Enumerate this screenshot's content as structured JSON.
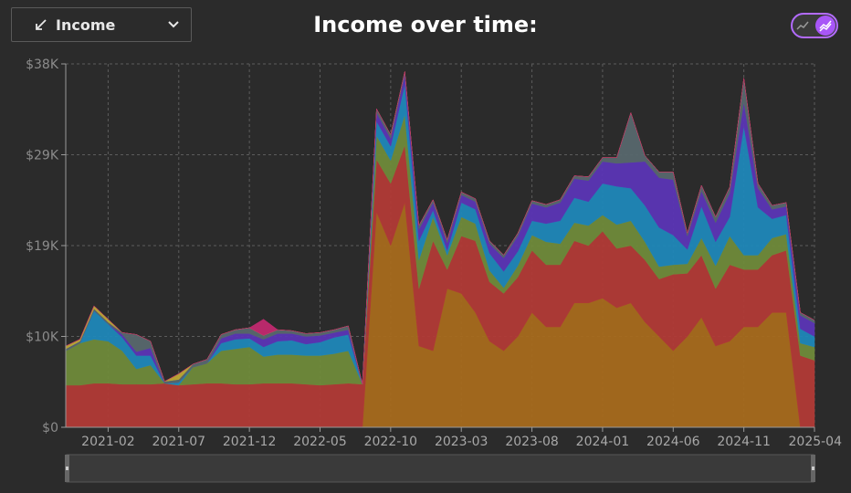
{
  "header": {
    "dropdown_label": "Income",
    "dropdown_icon": "trend-down-icon",
    "title": "Income over time:",
    "toggle_state": "on",
    "accent": "#a856f7"
  },
  "chart_data": {
    "type": "area",
    "stacked": true,
    "title": "Income over time:",
    "xlabel": "",
    "ylabel": "",
    "ylim": [
      0,
      38000
    ],
    "yticks": [
      0,
      9500,
      19000,
      28500,
      38000
    ],
    "ytick_labels": [
      "$0",
      "$10K",
      "$19K",
      "$29K",
      "$38K"
    ],
    "xticks": [
      "2021-02",
      "2021-07",
      "2021-12",
      "2022-05",
      "2022-10",
      "2023-03",
      "2023-08",
      "2024-01",
      "2024-06",
      "2024-11",
      "2025-04"
    ],
    "grid": true,
    "legend": "none",
    "x": [
      "2020-11",
      "2020-12",
      "2021-01",
      "2021-02",
      "2021-03",
      "2021-04",
      "2021-05",
      "2021-06",
      "2021-07",
      "2021-08",
      "2021-09",
      "2021-10",
      "2021-11",
      "2021-12",
      "2022-01",
      "2022-02",
      "2022-03",
      "2022-04",
      "2022-05",
      "2022-06",
      "2022-07",
      "2022-08",
      "2022-09",
      "2022-10",
      "2022-11",
      "2022-12",
      "2023-01",
      "2023-02",
      "2023-03",
      "2023-04",
      "2023-05",
      "2023-06",
      "2023-07",
      "2023-08",
      "2023-09",
      "2023-10",
      "2023-11",
      "2023-12",
      "2024-01",
      "2024-02",
      "2024-03",
      "2024-04",
      "2024-05",
      "2024-06",
      "2024-07",
      "2024-08",
      "2024-09",
      "2024-10",
      "2024-11",
      "2024-12",
      "2025-01",
      "2025-02",
      "2025-03",
      "2025-04"
    ],
    "series": [
      {
        "color": "#a66a1c",
        "values": [
          0,
          0,
          0,
          0,
          0,
          0,
          0,
          0,
          0,
          0,
          0,
          0,
          0,
          0,
          0,
          0,
          0,
          0,
          0,
          0,
          0,
          0,
          22500,
          19000,
          23500,
          8500,
          8000,
          14500,
          14000,
          12000,
          9000,
          8000,
          9500,
          12000,
          10500,
          10500,
          13000,
          13000,
          13500,
          12500,
          13000,
          11000,
          9500,
          8000,
          9500,
          11500,
          8500,
          9000,
          10500,
          10500,
          12000,
          12000,
          0,
          0
        ]
      },
      {
        "color": "#b13a36",
        "values": [
          4400,
          4400,
          4600,
          4600,
          4500,
          4500,
          4500,
          4600,
          4400,
          4500,
          4600,
          4600,
          4500,
          4500,
          4600,
          4600,
          4600,
          4500,
          4400,
          4500,
          4600,
          4500,
          5500,
          6500,
          6000,
          6000,
          11500,
          2000,
          6000,
          7500,
          6200,
          6000,
          6200,
          6500,
          6500,
          6500,
          6500,
          6000,
          7000,
          6200,
          6000,
          6500,
          6000,
          8000,
          6600,
          6500,
          6000,
          8000,
          6000,
          6000,
          6000,
          6500,
          7500,
          7000
        ]
      },
      {
        "color": "#6f8a3a",
        "values": [
          3600,
          4400,
          4600,
          4400,
          3500,
          1600,
          2000,
          0,
          0,
          1800,
          2100,
          3400,
          3700,
          3900,
          2800,
          3000,
          3000,
          3000,
          3100,
          3200,
          3400,
          0,
          2500,
          2400,
          3200,
          3000,
          2500,
          1500,
          2000,
          1800,
          1200,
          600,
          1200,
          1600,
          2400,
          2200,
          1900,
          2100,
          1700,
          2500,
          2600,
          1900,
          1300,
          1000,
          1000,
          1800,
          2400,
          3000,
          1500,
          1500,
          1800,
          1700,
          1300,
          1400
        ]
      },
      {
        "color": "#1f87b8",
        "values": [
          0,
          0,
          3000,
          1800,
          1400,
          1400,
          1000,
          0,
          300,
          0,
          0,
          800,
          1000,
          900,
          1000,
          1400,
          1500,
          1200,
          1400,
          1700,
          1700,
          0,
          1500,
          1500,
          3200,
          2000,
          700,
          500,
          1500,
          1500,
          1800,
          1700,
          1500,
          1500,
          1900,
          2400,
          2600,
          2500,
          3300,
          4000,
          3400,
          3800,
          4100,
          3100,
          1500,
          3300,
          2500,
          2000,
          13500,
          5000,
          2000,
          2000,
          1500,
          1100
        ]
      },
      {
        "color": "#5b35b5",
        "values": [
          0,
          0,
          0,
          0,
          300,
          400,
          800,
          0,
          0,
          0,
          0,
          500,
          600,
          500,
          800,
          800,
          700,
          800,
          700,
          500,
          500,
          0,
          900,
          800,
          1000,
          1200,
          800,
          800,
          800,
          800,
          1000,
          1400,
          1600,
          1800,
          1700,
          1900,
          2000,
          2200,
          2300,
          2400,
          2700,
          4600,
          5200,
          5800,
          1400,
          1600,
          2000,
          2500,
          2500,
          2000,
          1000,
          900,
          1400,
          1400
        ]
      },
      {
        "color": "#57676d",
        "values": [
          200,
          200,
          200,
          200,
          200,
          1800,
          700,
          200,
          300,
          300,
          400,
          400,
          400,
          600,
          400,
          400,
          300,
          300,
          300,
          300,
          400,
          0,
          400,
          400,
          300,
          400,
          300,
          300,
          300,
          300,
          300,
          300,
          300,
          300,
          300,
          300,
          300,
          400,
          400,
          600,
          5200,
          600,
          600,
          800,
          300,
          600,
          600,
          600,
          2500,
          500,
          400,
          400,
          300,
          300
        ]
      },
      {
        "color": "#bda834",
        "values": [
          300,
          200,
          300,
          300,
          0,
          0,
          0,
          0,
          600,
          0,
          0,
          0,
          0,
          0,
          0,
          0,
          0,
          0,
          0,
          0,
          0,
          0,
          0,
          0,
          0,
          0,
          0,
          0,
          0,
          0,
          0,
          0,
          0,
          0,
          0,
          0,
          0,
          0,
          0,
          0,
          0,
          0,
          0,
          0,
          0,
          0,
          0,
          0,
          0,
          0,
          0,
          0,
          0,
          0
        ]
      },
      {
        "color": "#c0296f",
        "values": [
          0,
          0,
          0,
          0,
          0,
          0,
          0,
          0,
          0,
          0,
          0,
          0,
          0,
          0,
          1700,
          0,
          0,
          0,
          0,
          0,
          0,
          0,
          0,
          0,
          0,
          0,
          0,
          0,
          0,
          0,
          0,
          0,
          0,
          0,
          0,
          0,
          0,
          0,
          0,
          0,
          0,
          0,
          0,
          0,
          0,
          0,
          0,
          0,
          0,
          0,
          0,
          0,
          0,
          0
        ]
      }
    ]
  }
}
